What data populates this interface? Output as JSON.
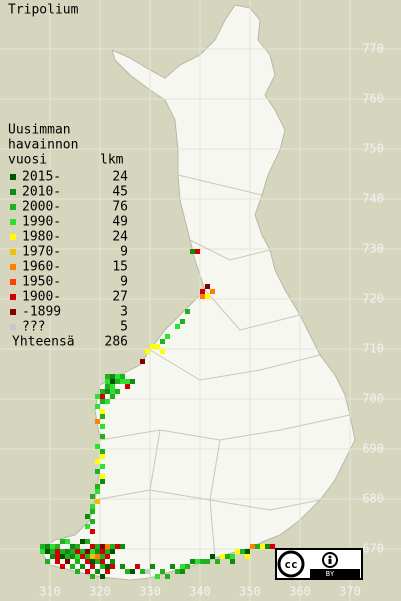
{
  "title": "Tripolium",
  "legend": {
    "heading": [
      "Uusimman",
      "havainnon",
      "vuosi"
    ],
    "count_header": "lkm",
    "items": [
      {
        "label": "2015-",
        "count": 24,
        "color": "#005400"
      },
      {
        "label": "2010-",
        "count": 45,
        "color": "#108a10"
      },
      {
        "label": "2000-",
        "count": 76,
        "color": "#20b020"
      },
      {
        "label": "1990-",
        "count": 49,
        "color": "#30e030"
      },
      {
        "label": "1980-",
        "count": 24,
        "color": "#ffff00"
      },
      {
        "label": "1970-",
        "count": 9,
        "color": "#f0c000"
      },
      {
        "label": "1960-",
        "count": 15,
        "color": "#ff8000"
      },
      {
        "label": "1950-",
        "count": 9,
        "color": "#ff4000"
      },
      {
        "label": "1900-",
        "count": 27,
        "color": "#d00000"
      },
      {
        "label": "-1899",
        "count": 3,
        "color": "#800000"
      },
      {
        "label": "???",
        "count": 5,
        "color": "#c8c8c8"
      }
    ],
    "total_label": "Yhteensä",
    "total": 286
  },
  "map": {
    "xticks": [
      310,
      320,
      330,
      340,
      350,
      360,
      370
    ],
    "yticks": [
      670,
      680,
      690,
      700,
      710,
      720,
      730,
      740,
      750,
      760,
      770
    ],
    "cells": [
      [
        338,
        729,
        1
      ],
      [
        339,
        729,
        8
      ],
      [
        340,
        721,
        8
      ],
      [
        341,
        722,
        9
      ],
      [
        342,
        721,
        6
      ],
      [
        341,
        720,
        4
      ],
      [
        340,
        720,
        6
      ],
      [
        337,
        717,
        2
      ],
      [
        336,
        715,
        2
      ],
      [
        335,
        714,
        3
      ],
      [
        333,
        712,
        3
      ],
      [
        332,
        711,
        2
      ],
      [
        330,
        710,
        4
      ],
      [
        331,
        710,
        4
      ],
      [
        329,
        709,
        4
      ],
      [
        332,
        709,
        4
      ],
      [
        328,
        707,
        9
      ],
      [
        321,
        704,
        2
      ],
      [
        322,
        704,
        1
      ],
      [
        323,
        704,
        3
      ],
      [
        324,
        704,
        2
      ],
      [
        325,
        703,
        3
      ],
      [
        326,
        703,
        1
      ],
      [
        321,
        703,
        3
      ],
      [
        322,
        703,
        0
      ],
      [
        323,
        703,
        2
      ],
      [
        324,
        703,
        3
      ],
      [
        321,
        702,
        2
      ],
      [
        322,
        702,
        3
      ],
      [
        325,
        702,
        8
      ],
      [
        320,
        701,
        2
      ],
      [
        321,
        701,
        1
      ],
      [
        322,
        701,
        3
      ],
      [
        323,
        701,
        2
      ],
      [
        319,
        700,
        3
      ],
      [
        320,
        700,
        8
      ],
      [
        322,
        700,
        2
      ],
      [
        320,
        699,
        2
      ],
      [
        321,
        699,
        3
      ],
      [
        319,
        698,
        3
      ],
      [
        320,
        697,
        4
      ],
      [
        320,
        696,
        2
      ],
      [
        319,
        695,
        6
      ],
      [
        320,
        694,
        3
      ],
      [
        320,
        692,
        2
      ],
      [
        319,
        690,
        3
      ],
      [
        320,
        689,
        2
      ],
      [
        320,
        688,
        4
      ],
      [
        319,
        687,
        4
      ],
      [
        320,
        686,
        3
      ],
      [
        319,
        685,
        2
      ],
      [
        320,
        684,
        4
      ],
      [
        320,
        683,
        1
      ],
      [
        319,
        682,
        2
      ],
      [
        319,
        681,
        3
      ],
      [
        318,
        680,
        2
      ],
      [
        319,
        679,
        5
      ],
      [
        318,
        678,
        3
      ],
      [
        318,
        677,
        2
      ],
      [
        317,
        676,
        1
      ],
      [
        318,
        675,
        2
      ],
      [
        317,
        674,
        3
      ],
      [
        318,
        673,
        8
      ],
      [
        308,
        670,
        2
      ],
      [
        309,
        670,
        1
      ],
      [
        310,
        670,
        3
      ],
      [
        311,
        670,
        2
      ],
      [
        312,
        671,
        2
      ],
      [
        313,
        671,
        3
      ],
      [
        314,
        670,
        1
      ],
      [
        315,
        670,
        2
      ],
      [
        316,
        671,
        0
      ],
      [
        317,
        671,
        2
      ],
      [
        318,
        670,
        8
      ],
      [
        319,
        670,
        2
      ],
      [
        320,
        670,
        9
      ],
      [
        321,
        670,
        6
      ],
      [
        322,
        670,
        2
      ],
      [
        323,
        670,
        8
      ],
      [
        324,
        670,
        1
      ],
      [
        308,
        669,
        3
      ],
      [
        309,
        669,
        0
      ],
      [
        310,
        669,
        2
      ],
      [
        311,
        669,
        8
      ],
      [
        312,
        669,
        2
      ],
      [
        313,
        669,
        1
      ],
      [
        314,
        669,
        2
      ],
      [
        315,
        669,
        8
      ],
      [
        316,
        669,
        2
      ],
      [
        317,
        669,
        9
      ],
      [
        318,
        669,
        3
      ],
      [
        319,
        669,
        1
      ],
      [
        320,
        669,
        8
      ],
      [
        321,
        669,
        2
      ],
      [
        322,
        669,
        0
      ],
      [
        310,
        668,
        1
      ],
      [
        311,
        668,
        8
      ],
      [
        312,
        668,
        0
      ],
      [
        313,
        668,
        2
      ],
      [
        314,
        668,
        1
      ],
      [
        315,
        668,
        3
      ],
      [
        316,
        668,
        8
      ],
      [
        317,
        668,
        2
      ],
      [
        318,
        668,
        5
      ],
      [
        319,
        668,
        6
      ],
      [
        320,
        668,
        2
      ],
      [
        321,
        668,
        8
      ],
      [
        309,
        667,
        2
      ],
      [
        311,
        667,
        8
      ],
      [
        313,
        667,
        9
      ],
      [
        315,
        667,
        2
      ],
      [
        317,
        667,
        8
      ],
      [
        318,
        667,
        0
      ],
      [
        319,
        667,
        2
      ],
      [
        320,
        667,
        8
      ],
      [
        322,
        667,
        1
      ],
      [
        312,
        666,
        8
      ],
      [
        314,
        666,
        2
      ],
      [
        316,
        666,
        1
      ],
      [
        318,
        666,
        8
      ],
      [
        320,
        666,
        2
      ],
      [
        321,
        666,
        0
      ],
      [
        322,
        666,
        8
      ],
      [
        315,
        665,
        2
      ],
      [
        317,
        665,
        8
      ],
      [
        319,
        665,
        1
      ],
      [
        321,
        665,
        8
      ],
      [
        318,
        664,
        2
      ],
      [
        320,
        664,
        0
      ],
      [
        324,
        666,
        1
      ],
      [
        325,
        665,
        2
      ],
      [
        326,
        665,
        0
      ],
      [
        327,
        666,
        8
      ],
      [
        328,
        665,
        2
      ],
      [
        329,
        665,
        10
      ],
      [
        330,
        666,
        1
      ],
      [
        332,
        665,
        2
      ],
      [
        334,
        666,
        1
      ],
      [
        335,
        665,
        2
      ],
      [
        336,
        666,
        3
      ],
      [
        337,
        666,
        2
      ],
      [
        338,
        667,
        1
      ],
      [
        339,
        667,
        3
      ],
      [
        340,
        667,
        2
      ],
      [
        341,
        667,
        2
      ],
      [
        342,
        668,
        0
      ],
      [
        343,
        667,
        2
      ],
      [
        344,
        668,
        4
      ],
      [
        345,
        668,
        2
      ],
      [
        346,
        668,
        3
      ],
      [
        347,
        669,
        4
      ],
      [
        348,
        669,
        2
      ],
      [
        349,
        669,
        0
      ],
      [
        350,
        670,
        6
      ],
      [
        351,
        670,
        2
      ],
      [
        352,
        670,
        4
      ],
      [
        353,
        670,
        1
      ],
      [
        354,
        670,
        8
      ],
      [
        355,
        669,
        3
      ],
      [
        349,
        668,
        4
      ],
      [
        346,
        667,
        1
      ],
      [
        331,
        664,
        3
      ],
      [
        333,
        664,
        2
      ],
      [
        336,
        665,
        1
      ]
    ]
  },
  "license": {
    "icon": "cc",
    "label": "BY"
  }
}
